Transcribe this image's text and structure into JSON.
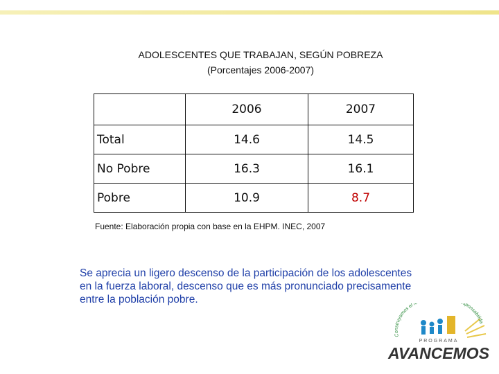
{
  "header": {
    "title": "ADOLESCENTES QUE TRABAJAN, SEGÚN POBREZA",
    "subtitle": "(Porcentajes 2006-2007)"
  },
  "table": {
    "columns": [
      "2006",
      "2007"
    ],
    "rows": [
      [
        "Total",
        14.6,
        14.5
      ],
      [
        "No Pobre",
        16.3,
        16.1
      ],
      [
        "Pobre",
        10.9,
        8.7
      ]
    ]
  },
  "source": "Fuente: Elaboración propia con base en la EHPM. INEC, 2007",
  "paragraph": "Se aprecia un ligero descenso de la participación de los adolescentes en la fuerza laboral, descenso que es más pronunciado precisamente entre la población pobre.",
  "logo": {
    "tagline": "Construyamos el futuro, compartiendo responsabilidades",
    "program": "PROGRAMA",
    "name": "AVANCEMOS"
  }
}
